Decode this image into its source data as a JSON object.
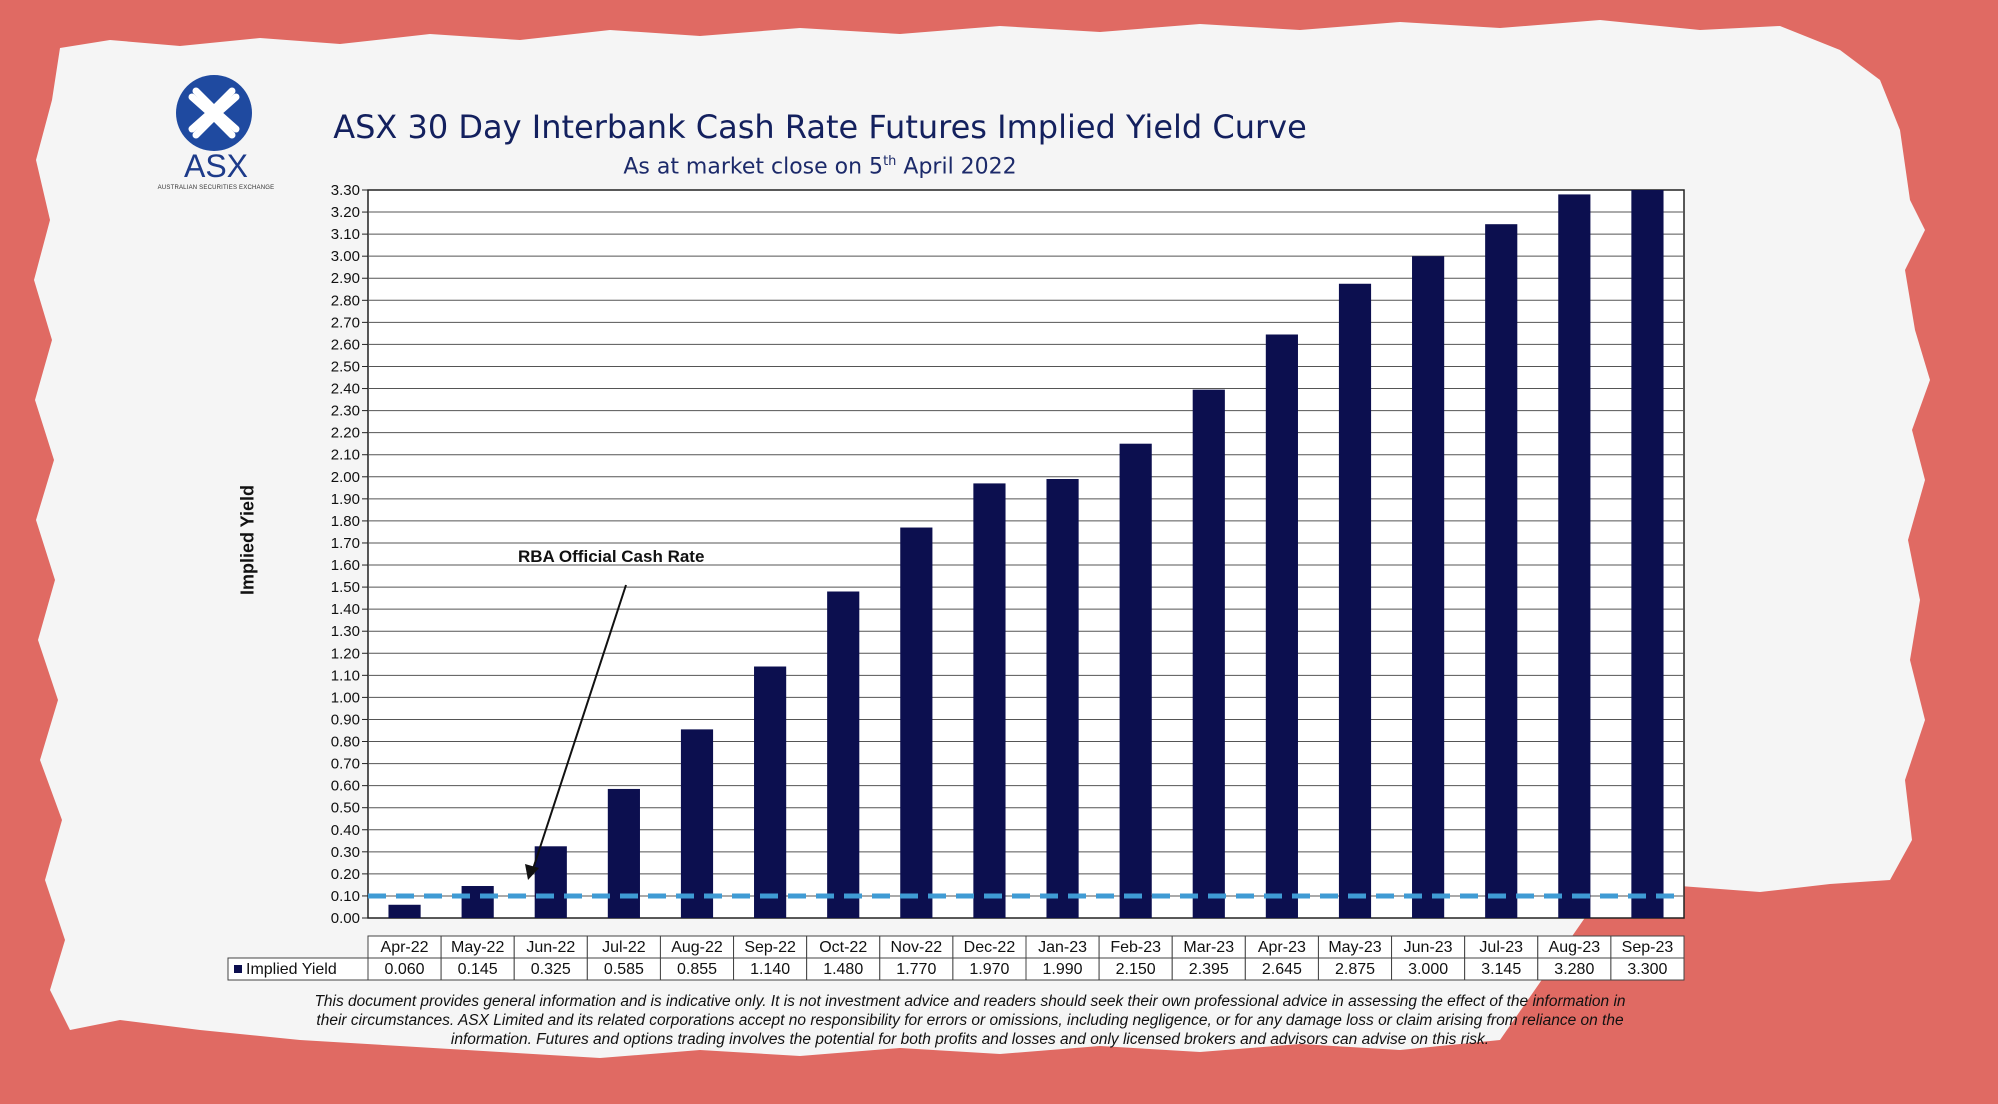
{
  "logo": {
    "text": "ASX",
    "subtext": "AUSTRALIAN SECURITIES EXCHANGE",
    "icon": "asx-cross-logo-icon"
  },
  "colors": {
    "background": "#e06a63",
    "paper": "#f5f5f5",
    "bar": "#0c0f4f",
    "dashed_line": "#3f9bd4",
    "title": "#13205e"
  },
  "chart_data": {
    "type": "bar",
    "title": "ASX 30 Day Interbank Cash Rate Futures Implied Yield Curve",
    "subtitle_prefix": "As at market close on 5",
    "subtitle_sup": "th",
    "subtitle_suffix": " April 2022",
    "ylabel": "Implied Yield",
    "xlabel": "",
    "ylim": [
      0,
      3.3
    ],
    "ytick_step": 0.1,
    "grid": true,
    "categories": [
      "Apr-22",
      "May-22",
      "Jun-22",
      "Jul-22",
      "Aug-22",
      "Sep-22",
      "Oct-22",
      "Nov-22",
      "Dec-22",
      "Jan-23",
      "Feb-23",
      "Mar-23",
      "Apr-23",
      "May-23",
      "Jun-23",
      "Jul-23",
      "Aug-23",
      "Sep-23"
    ],
    "series": [
      {
        "name": "Implied Yield",
        "values": [
          0.06,
          0.145,
          0.325,
          0.585,
          0.855,
          1.14,
          1.48,
          1.77,
          1.97,
          1.99,
          2.15,
          2.395,
          2.645,
          2.875,
          3.0,
          3.145,
          3.28,
          3.3
        ],
        "labels": [
          "0.060",
          "0.145",
          "0.325",
          "0.585",
          "0.855",
          "1.140",
          "1.480",
          "1.770",
          "1.970",
          "1.990",
          "2.150",
          "2.395",
          "2.645",
          "2.875",
          "3.000",
          "3.145",
          "3.280",
          "3.300"
        ]
      }
    ],
    "reference_line": {
      "value": 0.1
    },
    "annotation": "RBA Official Cash Rate"
  },
  "disclaimer": [
    "This document provides general information and is indicative only. It is not investment advice and readers should seek their own professional advice in assessing the effect of the information in",
    "their circumstances. ASX Limited and its related corporations accept no responsibility for errors or omissions, including negligence, or for any damage loss or claim arising from reliance on the",
    "information. Futures and options trading involves the potential for both profits and losses and only licensed brokers and advisors can advise on this risk."
  ]
}
